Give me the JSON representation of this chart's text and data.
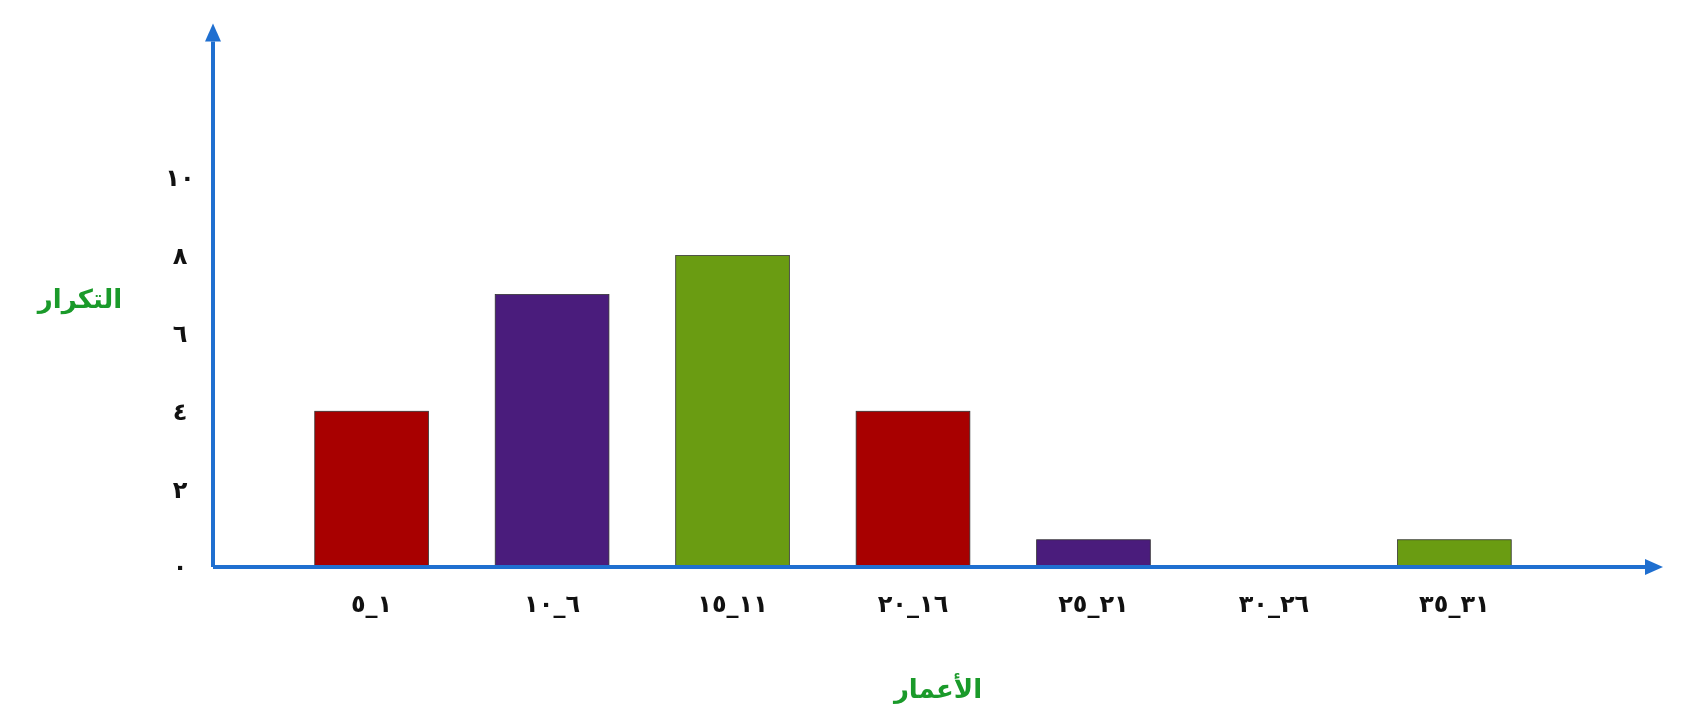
{
  "chart_data": {
    "type": "bar",
    "xlabel": "الأعمار",
    "ylabel": "التكرار",
    "categories": [
      "١_٥",
      "٦_١٠",
      "١١_١٥",
      "١٦_٢٠",
      "٢١_٢٥",
      "٢٦_٣٠",
      "٣١_٣٥"
    ],
    "values": [
      4,
      7,
      8,
      4,
      0.7,
      0,
      0.7
    ],
    "colors": [
      "#a80000",
      "#4a1c7c",
      "#6a9c12",
      "#a80000",
      "#4a1c7c",
      "#6a9c12",
      "#6a9c12"
    ],
    "ylim": [
      0,
      13.5
    ],
    "yticks": [
      {
        "value": 0,
        "label": "٠"
      },
      {
        "value": 2,
        "label": "٢"
      },
      {
        "value": 4,
        "label": "٤"
      },
      {
        "value": 6,
        "label": "٦"
      },
      {
        "value": 8,
        "label": "٨"
      },
      {
        "value": 10,
        "label": "١٠"
      }
    ],
    "grid": false
  }
}
